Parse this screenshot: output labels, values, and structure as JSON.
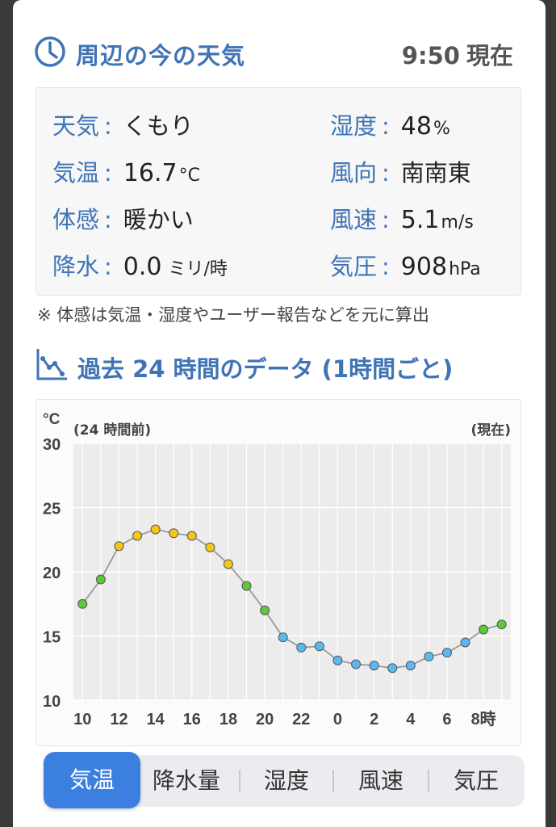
{
  "header": {
    "title": "周辺の今の天気",
    "time": "9:50",
    "time_suffix": "現在"
  },
  "current": {
    "weather": {
      "label": "天気",
      "value": "くもり"
    },
    "temperature": {
      "label": "気温",
      "value": "16.7",
      "unit": "°C"
    },
    "feels": {
      "label": "体感",
      "value": "暖かい"
    },
    "precip": {
      "label": "降水",
      "value": "0.0",
      "unit": "ミリ/時"
    },
    "humidity": {
      "label": "湿度",
      "value": "48",
      "unit": "%"
    },
    "wind_dir": {
      "label": "風向",
      "value": "南南東"
    },
    "wind_speed": {
      "label": "風速",
      "value": "5.1",
      "unit": "m/s"
    },
    "pressure": {
      "label": "気圧",
      "value": "908",
      "unit": "hPa"
    }
  },
  "note": "※ 体感は気温・湿度やユーザー報告などを元に算出",
  "section_title": "過去 24 時間のデータ (1時間ごと)",
  "chart_data": {
    "type": "line",
    "unit_label": "°C",
    "left_note": "(24 時間前)",
    "right_note": "(現在)",
    "ylim": [
      10,
      30
    ],
    "yticks": [
      10,
      15,
      20,
      25,
      30
    ],
    "x": [
      10,
      11,
      12,
      13,
      14,
      15,
      16,
      17,
      18,
      19,
      20,
      21,
      22,
      23,
      0,
      1,
      2,
      3,
      4,
      5,
      6,
      7,
      8,
      9
    ],
    "xtick_labels": [
      "10",
      "12",
      "14",
      "16",
      "18",
      "20",
      "22",
      "0",
      "2",
      "4",
      "6",
      "8時"
    ],
    "values": [
      17.5,
      19.4,
      22.0,
      22.8,
      23.3,
      23.0,
      22.8,
      21.9,
      20.6,
      18.9,
      17.0,
      14.9,
      14.1,
      14.2,
      13.1,
      12.8,
      12.7,
      12.5,
      12.7,
      13.4,
      13.7,
      14.5,
      15.5,
      15.9
    ],
    "grid": true,
    "colors": {
      "warm": "#f5c518",
      "mild": "#5cc83a",
      "cool": "#5bb8f0",
      "line": "#999999"
    }
  },
  "tabs": [
    "気温",
    "降水量",
    "湿度",
    "風速",
    "気圧"
  ],
  "active_tab": 0
}
